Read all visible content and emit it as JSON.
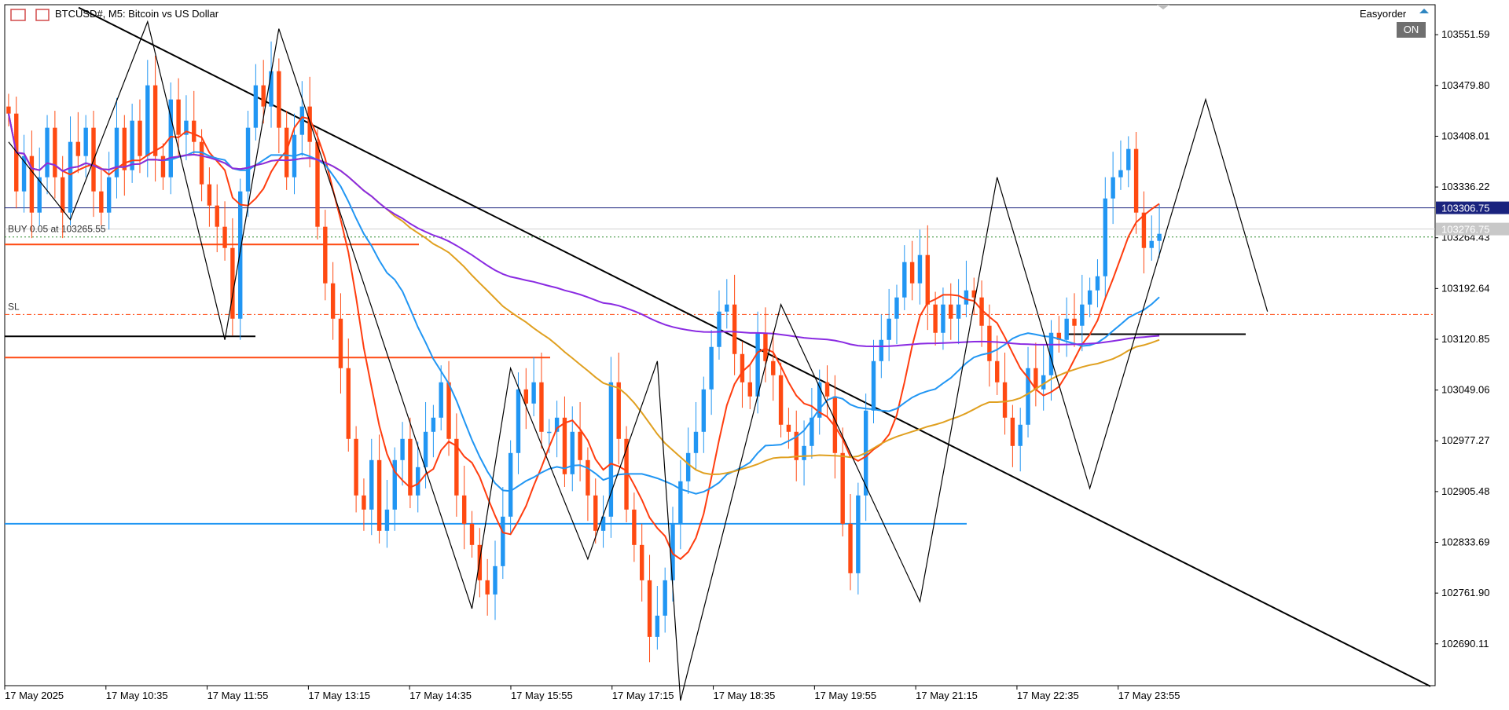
{
  "header": {
    "symbol_title": "BTCUSD#, M5:  Bitcoin vs US Dollar",
    "expert_name": "Easyorder",
    "expert_status": "ON"
  },
  "colors": {
    "bull": "#2196f3",
    "bear": "#ff4a12",
    "ma_fast": "#ff3d0f",
    "ma_mid": "#2196f3",
    "ma_slow": "#e0a020",
    "ma_long": "#8a2be2",
    "bid_line": "#1a237e",
    "ask_line": "#2e8b2e",
    "sl_line": "#ff4a12",
    "zigzag": "#000000",
    "trendline": "#000000"
  },
  "trade": {
    "buy_label": "BUY 0.05 at 103265.55",
    "sl_label": "SL"
  },
  "chart_data": {
    "type": "candlestick",
    "timeframe": "M5",
    "title": "BTCUSD#, M5:  Bitcoin vs US Dollar",
    "x_tick_labels": [
      "17 May 2025",
      "17 May 10:35",
      "17 May 11:55",
      "17 May 13:15",
      "17 May 14:35",
      "17 May 15:55",
      "17 May 17:15",
      "17 May 18:35",
      "17 May 19:55",
      "17 May 21:15",
      "17 May 22:35",
      "17 May 23:55"
    ],
    "y_tick_labels": [
      "103551.59",
      "103479.80",
      "103408.01",
      "103336.22",
      "103264.43",
      "103192.64",
      "103120.85",
      "103049.06",
      "102977.27",
      "102905.48",
      "102833.69",
      "102761.90",
      "102690.11"
    ],
    "ylim": [
      102631,
      103594
    ],
    "price_tags": [
      {
        "label": "103306.75",
        "kind": "bid"
      },
      {
        "label": "103276.75",
        "kind": "ask"
      }
    ],
    "horizontal_levels": {
      "bid": 103306.75,
      "ask": 103276.75,
      "buy_entry": 103265.55,
      "stop_loss": 103156
    },
    "candles_close": [
      103440,
      103330,
      103380,
      103300,
      103350,
      103420,
      103350,
      103300,
      103400,
      103380,
      103420,
      103330,
      103300,
      103350,
      103420,
      103360,
      103430,
      103380,
      103480,
      103380,
      103350,
      103460,
      103410,
      103430,
      103400,
      103340,
      103310,
      103280,
      103250,
      103150,
      103330,
      103420,
      103480,
      103450,
      103500,
      103420,
      103350,
      103410,
      103450,
      103400,
      103280,
      103200,
      103150,
      103080,
      102980,
      102900,
      102880,
      102950,
      102850,
      102880,
      102950,
      102980,
      102900,
      102940,
      102990,
      103010,
      103060,
      102980,
      102900,
      102860,
      102830,
      102780,
      102760,
      102800,
      102870,
      102960,
      103050,
      103030,
      103060,
      102990,
      102990,
      103010,
      102930,
      102990,
      102950,
      102900,
      102850,
      102870,
      103060,
      102980,
      102880,
      102830,
      102780,
      102700,
      102730,
      102780,
      102860,
      102920,
      102960,
      102990,
      103050,
      103110,
      103160,
      103170,
      103100,
      103060,
      103040,
      103130,
      103090,
      103070,
      103000,
      102990,
      102950,
      102970,
      103010,
      103060,
      103040,
      102960,
      102860,
      102790,
      102900,
      103020,
      103090,
      103120,
      103150,
      103180,
      103230,
      103200,
      103240,
      103170,
      103130,
      103170,
      103150,
      103170,
      103190,
      103180,
      103140,
      103090,
      103060,
      103010,
      102970,
      103000,
      103080,
      103050,
      103070,
      103130,
      103120,
      103150,
      103140,
      103170,
      103190,
      103210,
      103320,
      103350,
      103360,
      103390,
      103300,
      103250,
      103260,
      103270
    ]
  }
}
